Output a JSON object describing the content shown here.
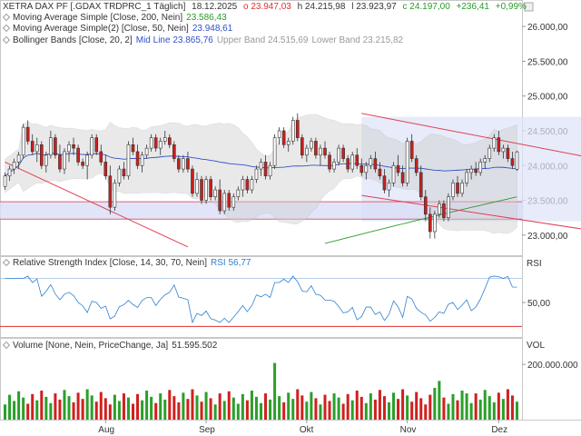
{
  "header": {
    "instrument": "XETRA DAX PF [.GDAX TRDPRC_1 Täglich]",
    "date": "18.12.2025",
    "open": "o 23.947,03",
    "high": "h 24.215,98",
    "low": "l 23.923,97",
    "close": "c 24.197,00",
    "change": "+236,41",
    "change_pct": "+0,99%"
  },
  "indicators": {
    "ma200": {
      "label": "Moving Average Simple [Close, 200, Nein]",
      "value": "23.586,43",
      "color": "#2a9a2a"
    },
    "ma50": {
      "label": "Moving Average Simple(2) [Close, 50, Nein]",
      "value": "23.948,61",
      "color": "#3050c8"
    },
    "bb": {
      "label": "Bollinger Bands [Close, 20, 2]",
      "mid": "Mid Line 23.865,76",
      "upper": "Upper Band 24.515,69",
      "lower": "Lower Band 23.215,82"
    }
  },
  "rsi": {
    "label": "Relative Strength Index [Close, 14, 30, 70, Nein]",
    "value": "RSI 56,77",
    "axis_title": "RSI"
  },
  "volume": {
    "label": "Volume [None, Nein, PriceChange, Ja]",
    "value": "51.595.502",
    "axis_title": "VOL"
  },
  "chart_data": {
    "type": "candlestick",
    "x_labels": [
      "Aug",
      "Sep",
      "Okt",
      "Nov",
      "Dez"
    ],
    "price_axis": {
      "ticks": [
        "23.000,00",
        "23.500,00",
        "24.000,00",
        "24.500,00",
        "25.000,00",
        "25.500,00",
        "26.000,00"
      ],
      "range": [
        22880,
        26250
      ]
    },
    "rsi_axis": {
      "ticks": [
        "50,00"
      ],
      "range": [
        25,
        75
      ],
      "levels": [
        30,
        70
      ]
    },
    "volume_axis": {
      "ticks": [
        "200.000.000"
      ],
      "range": [
        0,
        230000000
      ]
    },
    "horizontal_band": [
      23230,
      23480
    ],
    "channels": [
      {
        "from": [
          0,
          24050
        ],
        "to": [
          40,
          22830
        ]
      },
      {
        "from": [
          78,
          24750
        ],
        "to": [
          137,
          24000
        ]
      },
      {
        "from": [
          78,
          23570
        ],
        "to": [
          137,
          22980
        ]
      }
    ],
    "rect_zone": {
      "x": [
        78,
        137
      ],
      "y": [
        23200,
        24700
      ]
    },
    "candles": [
      [
        23700,
        23900,
        23650,
        23850
      ],
      [
        23850,
        24000,
        23780,
        23950
      ],
      [
        23950,
        24100,
        23880,
        24050
      ],
      [
        24050,
        24200,
        23950,
        24150
      ],
      [
        24150,
        24600,
        24100,
        24550
      ],
      [
        24550,
        24650,
        24300,
        24350
      ],
      [
        24350,
        24450,
        24150,
        24200
      ],
      [
        24200,
        24400,
        24050,
        24300
      ],
      [
        24300,
        24350,
        23950,
        24000
      ],
      [
        24000,
        24200,
        23900,
        24150
      ],
      [
        24150,
        24500,
        24100,
        24400
      ],
      [
        24400,
        24450,
        24100,
        24150
      ],
      [
        24150,
        24300,
        23900,
        23950
      ],
      [
        23950,
        24250,
        23880,
        24200
      ],
      [
        24200,
        24350,
        24050,
        24300
      ],
      [
        24300,
        24400,
        24150,
        24250
      ],
      [
        24250,
        24300,
        24000,
        24050
      ],
      [
        24050,
        24100,
        23950,
        24000
      ],
      [
        24000,
        24200,
        23800,
        24150
      ],
      [
        24150,
        24450,
        24100,
        24400
      ],
      [
        24400,
        24450,
        24150,
        24200
      ],
      [
        24200,
        24300,
        24000,
        24050
      ],
      [
        24050,
        24150,
        23800,
        23850
      ],
      [
        23850,
        24000,
        23300,
        23400
      ],
      [
        23400,
        23800,
        23350,
        23750
      ],
      [
        23750,
        24000,
        23700,
        23950
      ],
      [
        23950,
        24050,
        23800,
        23850
      ],
      [
        23850,
        24350,
        23800,
        24300
      ],
      [
        24300,
        24400,
        24150,
        24200
      ],
      [
        24200,
        24300,
        23950,
        24000
      ],
      [
        24000,
        24200,
        23900,
        24150
      ],
      [
        24150,
        24300,
        24100,
        24250
      ],
      [
        24250,
        24450,
        24200,
        24400
      ],
      [
        24400,
        24450,
        24200,
        24250
      ],
      [
        24250,
        24400,
        24150,
        24350
      ],
      [
        24350,
        24500,
        24300,
        24400
      ],
      [
        24400,
        24450,
        24250,
        24300
      ],
      [
        24300,
        24350,
        24050,
        24100
      ],
      [
        24100,
        24150,
        23900,
        23950
      ],
      [
        23950,
        24150,
        23900,
        24100
      ],
      [
        24100,
        24200,
        23900,
        23950
      ],
      [
        23950,
        24000,
        23550,
        23600
      ],
      [
        23600,
        23900,
        23550,
        23800
      ],
      [
        23800,
        23850,
        23450,
        23500
      ],
      [
        23500,
        23850,
        23450,
        23800
      ],
      [
        23800,
        23850,
        23500,
        23550
      ],
      [
        23550,
        23700,
        23500,
        23650
      ],
      [
        23650,
        23800,
        23300,
        23350
      ],
      [
        23350,
        23650,
        23300,
        23600
      ],
      [
        23600,
        23650,
        23350,
        23400
      ],
      [
        23400,
        23600,
        23350,
        23550
      ],
      [
        23550,
        23700,
        23500,
        23650
      ],
      [
        23650,
        23850,
        23550,
        23800
      ],
      [
        23800,
        23850,
        23600,
        23650
      ],
      [
        23650,
        23850,
        23600,
        23800
      ],
      [
        23800,
        24000,
        23750,
        23950
      ],
      [
        23950,
        24100,
        23850,
        24050
      ],
      [
        24050,
        24150,
        23800,
        23850
      ],
      [
        23850,
        24050,
        23800,
        24000
      ],
      [
        24000,
        24450,
        23950,
        24400
      ],
      [
        24400,
        24550,
        24300,
        24500
      ],
      [
        24500,
        24550,
        24250,
        24300
      ],
      [
        24300,
        24400,
        24200,
        24350
      ],
      [
        24350,
        24700,
        24300,
        24650
      ],
      [
        24650,
        24750,
        24350,
        24400
      ],
      [
        24400,
        24450,
        24100,
        24150
      ],
      [
        24150,
        24300,
        24050,
        24250
      ],
      [
        24250,
        24400,
        24200,
        24350
      ],
      [
        24350,
        24400,
        24100,
        24150
      ],
      [
        24150,
        24300,
        24000,
        24250
      ],
      [
        24250,
        24350,
        24100,
        24150
      ],
      [
        24150,
        24200,
        23900,
        23950
      ],
      [
        23950,
        24100,
        23900,
        24050
      ],
      [
        24050,
        24300,
        24000,
        24250
      ],
      [
        24250,
        24300,
        24050,
        24100
      ],
      [
        24100,
        24150,
        23900,
        23950
      ],
      [
        23950,
        24200,
        23900,
        24150
      ],
      [
        24150,
        24250,
        23950,
        24000
      ],
      [
        24000,
        24100,
        23850,
        23900
      ],
      [
        23900,
        24050,
        23800,
        24000
      ],
      [
        24000,
        24150,
        23950,
        24100
      ],
      [
        24100,
        24200,
        23900,
        23950
      ],
      [
        23950,
        24050,
        23800,
        23850
      ],
      [
        23850,
        23950,
        23600,
        23650
      ],
      [
        23650,
        23800,
        23550,
        23750
      ],
      [
        23750,
        24050,
        23700,
        24000
      ],
      [
        24000,
        24150,
        23850,
        23900
      ],
      [
        23900,
        24000,
        23700,
        23750
      ],
      [
        23750,
        24400,
        23700,
        24350
      ],
      [
        24350,
        24450,
        24050,
        24100
      ],
      [
        24100,
        24150,
        23850,
        23900
      ],
      [
        23900,
        24000,
        23500,
        23550
      ],
      [
        23550,
        23650,
        23200,
        23300
      ],
      [
        23300,
        23400,
        22950,
        23050
      ],
      [
        23050,
        23350,
        22950,
        23300
      ],
      [
        23300,
        23500,
        23250,
        23450
      ],
      [
        23450,
        23500,
        23200,
        23250
      ],
      [
        23250,
        23600,
        23200,
        23550
      ],
      [
        23550,
        23800,
        23500,
        23750
      ],
      [
        23750,
        23850,
        23550,
        23600
      ],
      [
        23600,
        23800,
        23550,
        23750
      ],
      [
        23750,
        23950,
        23700,
        23900
      ],
      [
        23900,
        24000,
        23800,
        23950
      ],
      [
        23950,
        24050,
        23850,
        23900
      ],
      [
        23900,
        24100,
        23850,
        24050
      ],
      [
        24050,
        24150,
        23950,
        24100
      ],
      [
        24100,
        24300,
        24050,
        24250
      ],
      [
        24250,
        24450,
        24200,
        24400
      ],
      [
        24400,
        24500,
        24150,
        24200
      ],
      [
        24200,
        24300,
        24100,
        24250
      ],
      [
        24250,
        24300,
        24050,
        24100
      ],
      [
        24100,
        24200,
        23950,
        24000
      ],
      [
        23947,
        24216,
        23924,
        24197
      ]
    ]
  }
}
